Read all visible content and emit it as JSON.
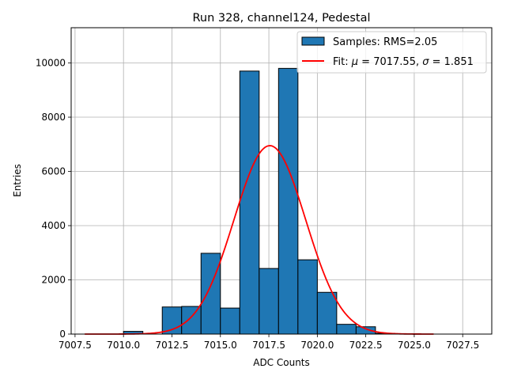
{
  "chart_data": {
    "type": "bar",
    "title": "Run 328, channel124, Pedestal",
    "xlabel": "ADC Counts",
    "ylabel": "Entries",
    "xlim": [
      7007.3,
      7029.0
    ],
    "ylim": [
      0,
      11300
    ],
    "xticks": [
      "7007.5",
      "7010.0",
      "7012.5",
      "7015.0",
      "7017.5",
      "7020.0",
      "7022.5",
      "7025.0",
      "7027.5"
    ],
    "xtick_values": [
      7007.5,
      7010.0,
      7012.5,
      7015.0,
      7017.5,
      7020.0,
      7022.5,
      7025.0,
      7027.5
    ],
    "yticks": [
      "0",
      "2000",
      "4000",
      "6000",
      "8000",
      "10000"
    ],
    "ytick_values": [
      0,
      2000,
      4000,
      6000,
      8000,
      10000
    ],
    "grid": true,
    "legend_position": "top-right",
    "histogram": {
      "name": "Samples: RMS=2.05",
      "color": "#1f77b4",
      "edge_color": "#000000",
      "bin_edges": [
        7008.0,
        7009.0,
        7010.0,
        7011.0,
        7012.0,
        7013.0,
        7014.0,
        7015.0,
        7016.0,
        7017.0,
        7018.0,
        7019.0,
        7020.0,
        7021.0,
        7022.0,
        7023.0,
        7024.0,
        7025.0,
        7026.0,
        7027.0,
        7028.0
      ],
      "counts": [
        0,
        0,
        100,
        0,
        1000,
        1020,
        2980,
        960,
        9700,
        2420,
        9800,
        2740,
        1540,
        360,
        270,
        30,
        0,
        0,
        0,
        0
      ]
    },
    "fit": {
      "name": "Fit: μ = 7017.55, σ = 1.851",
      "label_parts": [
        "Fit: ",
        "μ",
        " = 7017.55, ",
        "σ",
        " = 1.851"
      ],
      "color": "#ff0000",
      "mu": 7017.55,
      "sigma": 1.851,
      "amplitude": 6950,
      "x_range": [
        7008.0,
        7026.0
      ]
    }
  }
}
